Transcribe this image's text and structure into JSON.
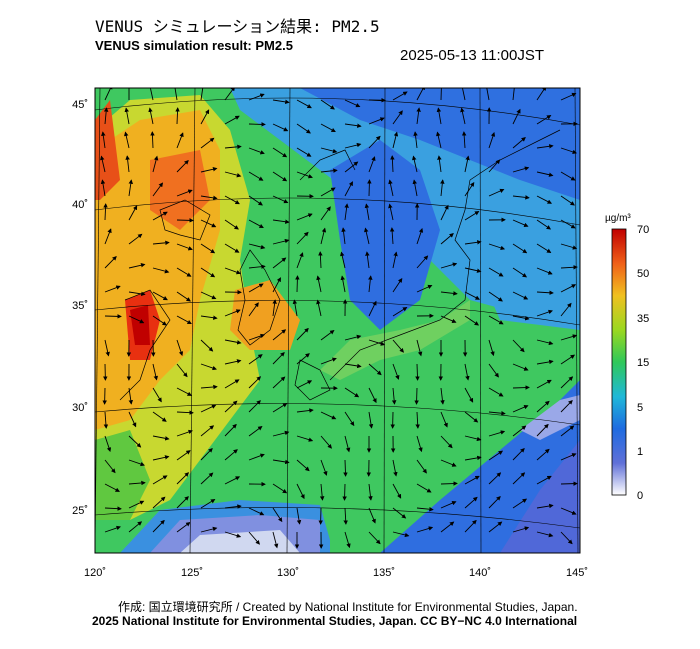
{
  "header": {
    "title_jp": "VENUS シミュレーション結果: PM2.5",
    "title_en": "VENUS simulation result: PM2.5",
    "timestamp": "2025-05-13 11:00JST"
  },
  "map": {
    "x_ticks": [
      "120˚",
      "125˚",
      "130˚",
      "135˚",
      "140˚",
      "145˚"
    ],
    "y_ticks": [
      "45˚",
      "40˚",
      "35˚",
      "30˚",
      "25˚"
    ],
    "colorbar": {
      "unit": "µg/m³",
      "labels": [
        "70",
        "50",
        "35",
        "15",
        "5",
        "1",
        "0"
      ],
      "colors": [
        "#ffffff",
        "#2050c8",
        "#20b0d8",
        "#30c850",
        "#c8d820",
        "#f0a020",
        "#e83010",
        "#c00000"
      ]
    }
  },
  "footer": {
    "credit": "作成: 国立環境研究所 / Created by National Institute for Environmental Studies, Japan.",
    "license": "2025 National Institute for Environmental Studies, Japan. CC BY−NC 4.0 International"
  }
}
